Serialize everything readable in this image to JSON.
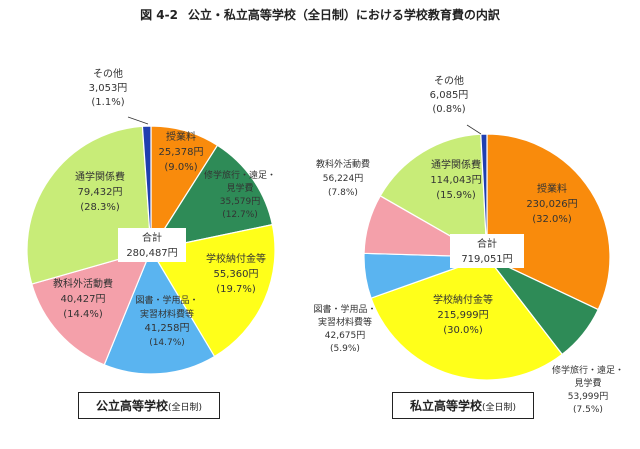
{
  "figure": {
    "number": "図 4-2",
    "title": "公立・私立高等学校（全日制）における学校教育費の内訳"
  },
  "captions": {
    "public": {
      "main": "公立高等学校",
      "sub": "(全日制)"
    },
    "private": {
      "main": "私立高等学校",
      "sub": "(全日制)"
    }
  },
  "chart_data": [
    {
      "type": "pie",
      "name": "公立高等学校(全日制)",
      "total_label": "合計",
      "total_value": "280,487円",
      "slices": [
        {
          "label": "授業料",
          "amount": "25,378円",
          "percent_text": "(9.0%)",
          "value": 9.0,
          "color": "#f98b0c"
        },
        {
          "label": "修学旅行・遠足・見学費",
          "amount": "35,579円",
          "percent_text": "(12.7%)",
          "value": 12.7,
          "color": "#2e8b57"
        },
        {
          "label": "学校納付金等",
          "amount": "55,360円",
          "percent_text": "(19.7%)",
          "value": 19.7,
          "color": "#ffff1a"
        },
        {
          "label": "図書・学用品・実習材料費等",
          "amount": "41,258円",
          "percent_text": "(14.7%)",
          "value": 14.7,
          "color": "#5ab4f0"
        },
        {
          "label": "教科外活動費",
          "amount": "40,427円",
          "percent_text": "(14.4%)",
          "value": 14.4,
          "color": "#f4a0aa"
        },
        {
          "label": "通学関係費",
          "amount": "79,432円",
          "percent_text": "(28.3%)",
          "value": 28.3,
          "color": "#c8ec78"
        },
        {
          "label": "その他",
          "amount": "3,053円",
          "percent_text": "(1.1%)",
          "value": 1.1,
          "color": "#1f3fb0"
        }
      ]
    },
    {
      "type": "pie",
      "name": "私立高等学校(全日制)",
      "total_label": "合計",
      "total_value": "719,051円",
      "slices": [
        {
          "label": "授業料",
          "amount": "230,026円",
          "percent_text": "(32.0%)",
          "value": 32.0,
          "color": "#f98b0c"
        },
        {
          "label": "修学旅行・遠足・見学費",
          "amount": "53,999円",
          "percent_text": "(7.5%)",
          "value": 7.5,
          "color": "#2e8b57"
        },
        {
          "label": "学校納付金等",
          "amount": "215,999円",
          "percent_text": "(30.0%)",
          "value": 30.0,
          "color": "#ffff1a"
        },
        {
          "label": "図書・学用品・実習材料費等",
          "amount": "42,675円",
          "percent_text": "(5.9%)",
          "value": 5.9,
          "color": "#5ab4f0"
        },
        {
          "label": "教科外活動費",
          "amount": "56,224円",
          "percent_text": "(7.8%)",
          "value": 7.8,
          "color": "#f4a0aa"
        },
        {
          "label": "通学関係費",
          "amount": "114,043円",
          "percent_text": "(15.9%)",
          "value": 15.9,
          "color": "#c8ec78"
        },
        {
          "label": "その他",
          "amount": "6,085円",
          "percent_text": "(0.8%)",
          "value": 0.8,
          "color": "#1f3fb0"
        }
      ]
    }
  ]
}
